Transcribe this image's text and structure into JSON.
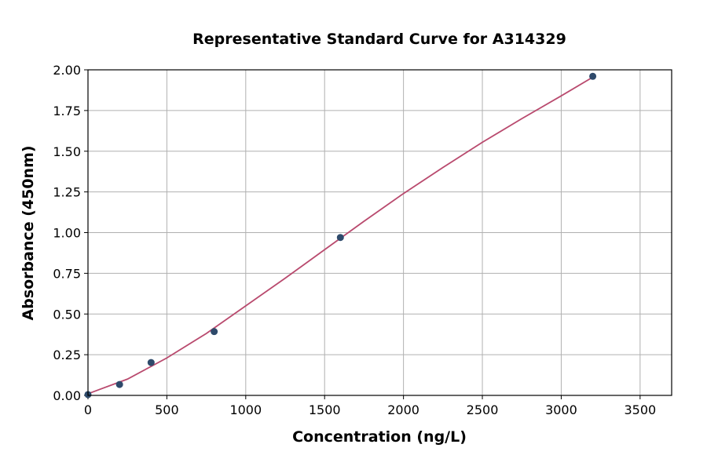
{
  "chart_data": {
    "type": "scatter",
    "title": "Representative Standard Curve for A314329",
    "xlabel": "Concentration (ng/L)",
    "ylabel": "Absorbance (450nm)",
    "xlim": [
      0,
      3700
    ],
    "ylim": [
      0,
      2.0
    ],
    "xticks": [
      0,
      500,
      1000,
      1500,
      2000,
      2500,
      3000,
      3500
    ],
    "yticks": [
      "0.00",
      "0.25",
      "0.50",
      "0.75",
      "1.00",
      "1.25",
      "1.50",
      "1.75",
      "2.00"
    ],
    "grid": true,
    "points": {
      "x": [
        0,
        200,
        400,
        800,
        1600,
        3200
      ],
      "y": [
        0.005,
        0.067,
        0.202,
        0.392,
        0.97,
        1.96
      ]
    },
    "fit_curve": {
      "x": [
        0,
        250,
        500,
        750,
        1000,
        1250,
        1500,
        1750,
        2000,
        2250,
        2500,
        2750,
        3000,
        3200
      ],
      "y": [
        0.01,
        0.1,
        0.23,
        0.38,
        0.55,
        0.72,
        0.895,
        1.07,
        1.24,
        1.4,
        1.555,
        1.7,
        1.84,
        1.955
      ]
    },
    "colors": {
      "points": "#2e4a6b",
      "curve": "#b94a6e"
    }
  }
}
